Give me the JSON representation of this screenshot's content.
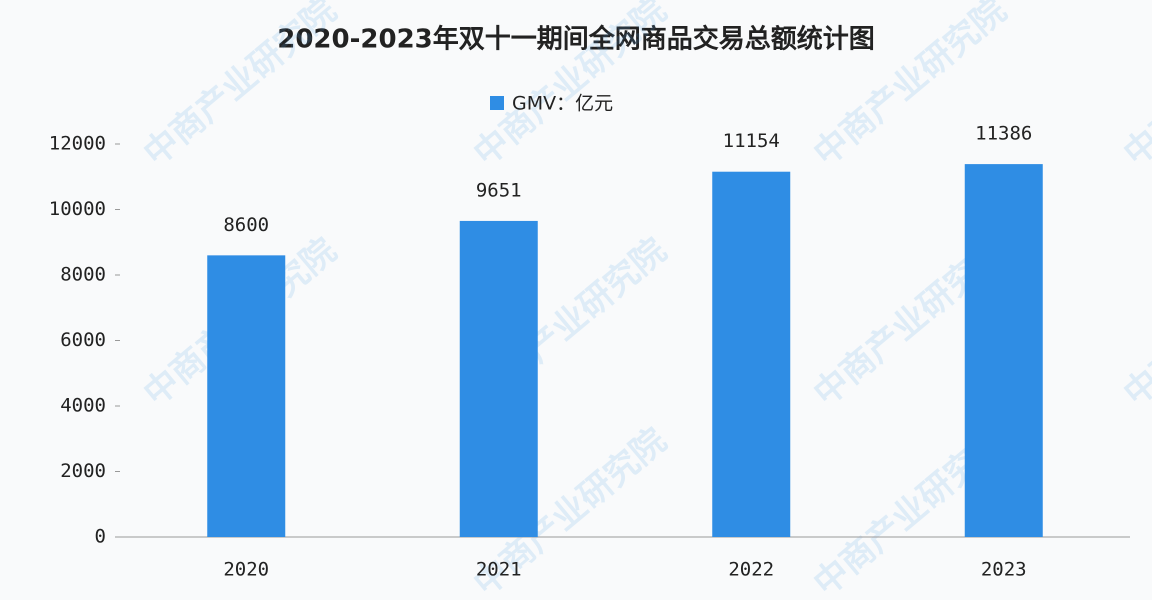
{
  "chart_data": {
    "type": "bar",
    "title": "2020-2023年双十一期间全网商品交易总额统计图",
    "watermark": "中商产业研究院",
    "categories": [
      "2020",
      "2021",
      "2022",
      "2023"
    ],
    "series": [
      {
        "name": "GMV：亿元",
        "color": "#2f8de4",
        "values": [
          8600,
          9651,
          11154,
          11386
        ]
      }
    ],
    "ylim": [
      0,
      12000
    ],
    "yticks": [
      0,
      2000,
      4000,
      6000,
      8000,
      10000,
      12000
    ],
    "grid": false,
    "legend": "top",
    "data_labels": true
  }
}
